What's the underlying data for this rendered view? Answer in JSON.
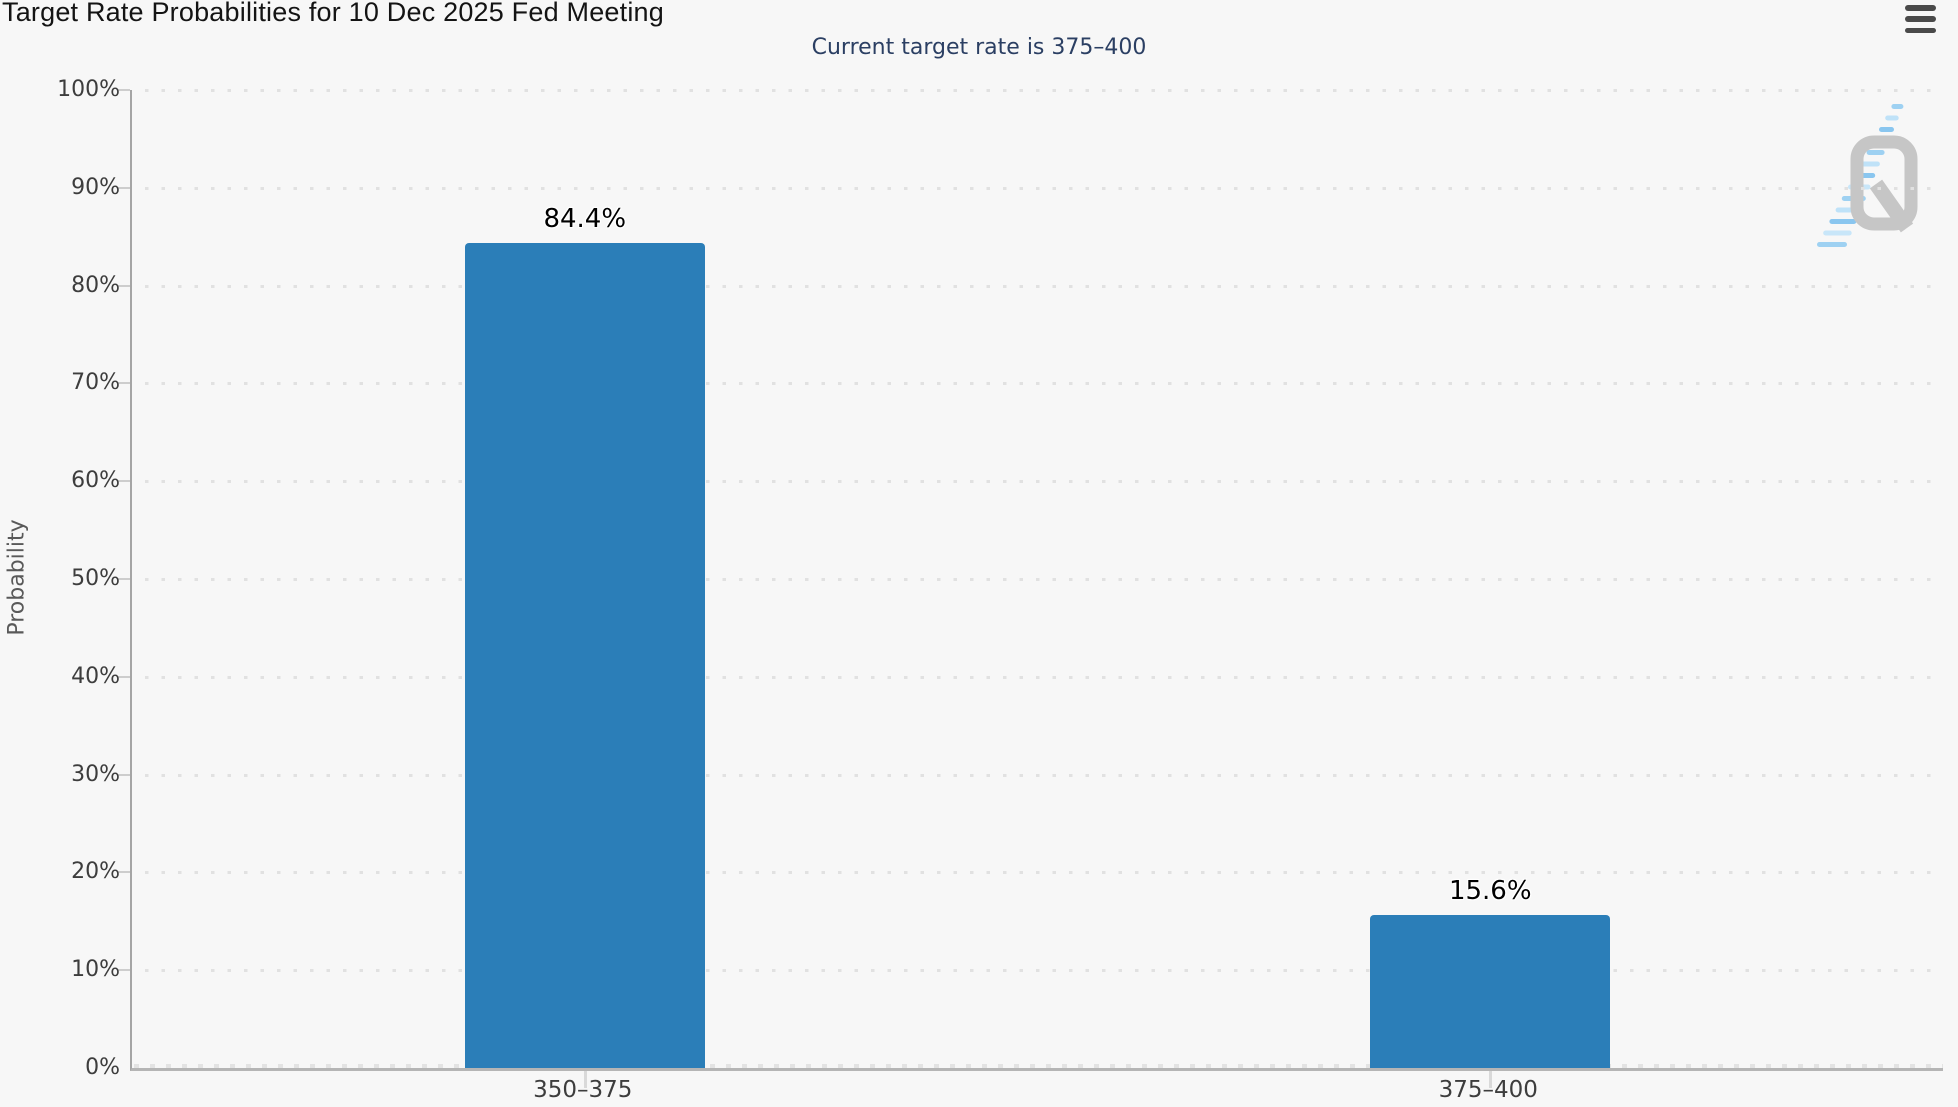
{
  "header": {
    "menu_icon": "hamburger-icon"
  },
  "chart_data": {
    "type": "bar",
    "title": "Target Rate Probabilities for 10 Dec 2025 Fed Meeting",
    "subtitle": "Current target rate is 375–400",
    "categories": [
      "350–375",
      "375–400"
    ],
    "values": [
      84.4,
      15.6
    ],
    "value_labels": [
      "84.4%",
      "15.6%"
    ],
    "xlabel": "",
    "ylabel": "Probability",
    "ylim": [
      0,
      100
    ],
    "ytick_step": 10,
    "ytick_labels": [
      "0%",
      "10%",
      "20%",
      "30%",
      "40%",
      "50%",
      "60%",
      "70%",
      "80%",
      "90%",
      "100%"
    ],
    "grid": "dotted-horizontal",
    "legend": "none",
    "bar_color": "#2b7eb8"
  },
  "watermark": {
    "letter": "Q",
    "name": "quikstrike-logo"
  },
  "colors": {
    "background": "#f7f7f7",
    "bar": "#2b7eb8",
    "title_text": "#141414",
    "subtitle_text": "#2b3f63",
    "axis_label_text": "#3d3d3d",
    "axis_title_text": "#595959",
    "x_axis_line": "#b5b5b5",
    "y_axis_line": "#a5a5a5",
    "grid_dot": "#e1e1e1",
    "value_label_text": "#000000",
    "menu_icon": "#4a4a4a",
    "logo_gray": "#c6c6c6",
    "logo_blue": "#9ed1f2"
  }
}
